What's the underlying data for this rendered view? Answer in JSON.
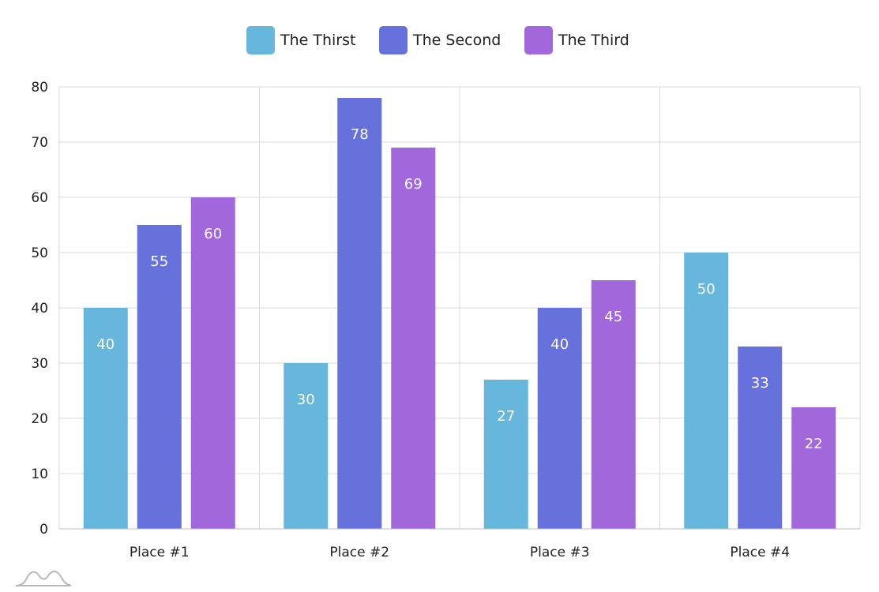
{
  "chart_data": {
    "type": "bar",
    "categories": [
      "Place #1",
      "Place #2",
      "Place #3",
      "Place #4"
    ],
    "series": [
      {
        "name": "The Thirst",
        "color": "#67b7dc",
        "values": [
          40,
          30,
          27,
          50
        ]
      },
      {
        "name": "The Second",
        "color": "#6771dc",
        "values": [
          55,
          78,
          40,
          33
        ]
      },
      {
        "name": "The Third",
        "color": "#a367dc",
        "values": [
          60,
          69,
          45,
          22
        ]
      }
    ],
    "ylim": [
      0,
      80
    ],
    "yticks": [
      0,
      10,
      20,
      30,
      40,
      50,
      60,
      70,
      80
    ],
    "grid": true,
    "legend_position": "top-center",
    "data_labels": true
  },
  "logo": {
    "icon": "amcharts-logo-icon"
  }
}
